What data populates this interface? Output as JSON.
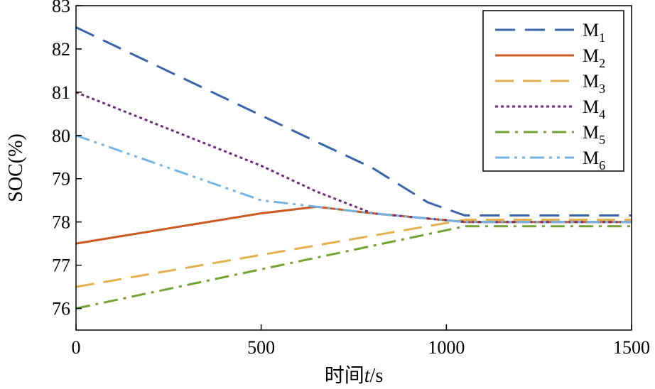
{
  "chart_data": {
    "type": "line",
    "title": "",
    "xlabel": "时间t/s",
    "ylabel": "SOC(%)",
    "xlim": [
      0,
      1500
    ],
    "ylim": [
      75.5,
      83
    ],
    "xticks": [
      0,
      500,
      1000,
      1500
    ],
    "yticks": [
      76,
      77,
      78,
      79,
      80,
      81,
      82,
      83
    ],
    "grid": false,
    "legend_position": "top-right",
    "series": [
      {
        "name": "M1",
        "sub": "1",
        "color": "#3a64a8",
        "dash": "28 14",
        "x": [
          0,
          650,
          800,
          950,
          1050,
          1500
        ],
        "y": [
          82.5,
          79.85,
          79.25,
          78.45,
          78.15,
          78.15
        ]
      },
      {
        "name": "M2",
        "sub": "2",
        "color": "#cc5a25",
        "dash": "",
        "x": [
          0,
          500,
          650,
          800,
          1050,
          1500
        ],
        "y": [
          77.5,
          78.2,
          78.35,
          78.2,
          78.0,
          78.0
        ]
      },
      {
        "name": "M3",
        "sub": "3",
        "color": "#e3b04f",
        "dash": "26 13",
        "x": [
          0,
          1050,
          1500
        ],
        "y": [
          76.5,
          78.05,
          78.05
        ]
      },
      {
        "name": "M4",
        "sub": "4",
        "color": "#6b2a7a",
        "dash": "4 4",
        "x": [
          0,
          500,
          650,
          800,
          1050,
          1500
        ],
        "y": [
          81.0,
          79.3,
          78.7,
          78.2,
          78.0,
          78.0
        ]
      },
      {
        "name": "M5",
        "sub": "5",
        "color": "#73a232",
        "dash": "20 8 4 8",
        "x": [
          0,
          1050,
          1500
        ],
        "y": [
          76.0,
          77.9,
          77.9
        ]
      },
      {
        "name": "M6",
        "sub": "6",
        "color": "#75b3e2",
        "dash": "20 7 4 7 4 7",
        "x": [
          0,
          500,
          650,
          800,
          1050,
          1500
        ],
        "y": [
          80.0,
          78.5,
          78.35,
          78.2,
          78.0,
          78.0
        ]
      }
    ]
  }
}
